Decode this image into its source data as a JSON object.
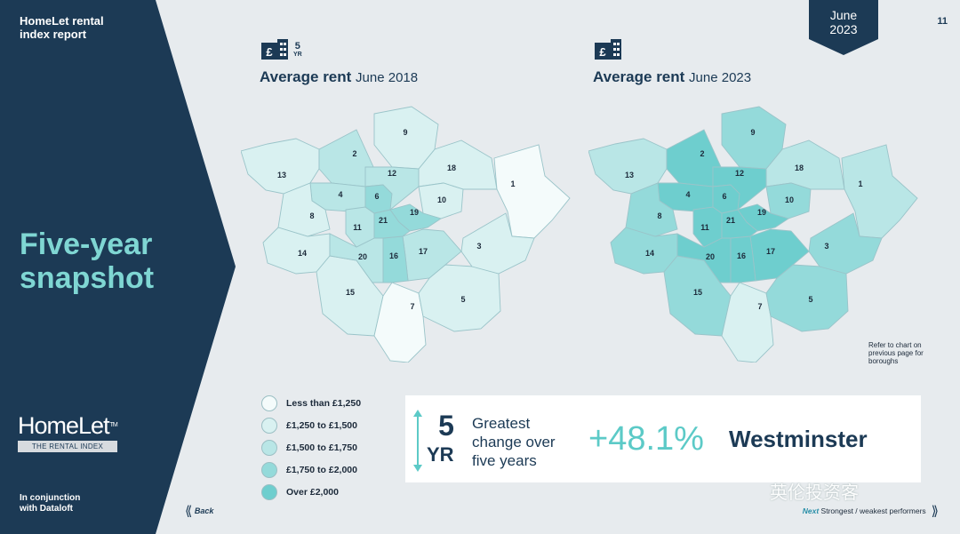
{
  "header": {
    "brand_title": "HomeLet rental index report",
    "date_tag_line1": "June",
    "date_tag_line2": "2023",
    "page_number": "11"
  },
  "sidebar": {
    "hero_title": "Five-year snapshot",
    "logo_word_1": "Home",
    "logo_word_2": "Let",
    "logo_tm": "TM",
    "logo_sub": "THE RENTAL INDEX",
    "partner_text": "In conjunction with Dataloft"
  },
  "colors": {
    "navy": "#1c3a55",
    "accent": "#7fd6d3",
    "band_1": "#f4fbfb",
    "band_2": "#d9f1f1",
    "band_3": "#b9e6e6",
    "band_4": "#94dada",
    "band_5": "#6ecece"
  },
  "maps": [
    {
      "badge_number": "5",
      "badge_unit": "YR",
      "title_bold": "Average rent",
      "title_period": "June 2018",
      "icon": "house-pound-icon",
      "boroughs": [
        {
          "label": "1",
          "band": 1
        },
        {
          "label": "2",
          "band": 3
        },
        {
          "label": "3",
          "band": 2
        },
        {
          "label": "4",
          "band": 3
        },
        {
          "label": "5",
          "band": 2
        },
        {
          "label": "6",
          "band": 4
        },
        {
          "label": "7",
          "band": 1
        },
        {
          "label": "8",
          "band": 2
        },
        {
          "label": "9",
          "band": 2
        },
        {
          "label": "10",
          "band": 2
        },
        {
          "label": "11",
          "band": 3
        },
        {
          "label": "12",
          "band": 3
        },
        {
          "label": "13",
          "band": 2
        },
        {
          "label": "14",
          "band": 2
        },
        {
          "label": "15",
          "band": 2
        },
        {
          "label": "16",
          "band": 4
        },
        {
          "label": "17",
          "band": 3
        },
        {
          "label": "18",
          "band": 2
        },
        {
          "label": "19",
          "band": 4
        },
        {
          "label": "20",
          "band": 3
        },
        {
          "label": "21",
          "band": 4
        }
      ]
    },
    {
      "badge_number": "",
      "badge_unit": "",
      "title_bold": "Average rent",
      "title_period": "June 2023",
      "icon": "house-pound-icon",
      "boroughs": [
        {
          "label": "1",
          "band": 3
        },
        {
          "label": "2",
          "band": 5
        },
        {
          "label": "3",
          "band": 4
        },
        {
          "label": "4",
          "band": 5
        },
        {
          "label": "5",
          "band": 4
        },
        {
          "label": "6",
          "band": 5
        },
        {
          "label": "7",
          "band": 2
        },
        {
          "label": "8",
          "band": 4
        },
        {
          "label": "9",
          "band": 4
        },
        {
          "label": "10",
          "band": 4
        },
        {
          "label": "11",
          "band": 5
        },
        {
          "label": "12",
          "band": 5
        },
        {
          "label": "13",
          "band": 3
        },
        {
          "label": "14",
          "band": 4
        },
        {
          "label": "15",
          "band": 4
        },
        {
          "label": "16",
          "band": 5
        },
        {
          "label": "17",
          "band": 5
        },
        {
          "label": "18",
          "band": 3
        },
        {
          "label": "19",
          "band": 5
        },
        {
          "label": "20",
          "band": 5
        },
        {
          "label": "21",
          "band": 5
        }
      ]
    }
  ],
  "map_note": "Refer to chart on previous page for boroughs",
  "legend": [
    {
      "label": "Less than £1,250",
      "color": "#f4fbfb"
    },
    {
      "label": "£1,250 to £1,500",
      "color": "#d9f1f1"
    },
    {
      "label": "£1,500 to £1,750",
      "color": "#b9e6e6"
    },
    {
      "label": "£1,750 to £2,000",
      "color": "#94dada"
    },
    {
      "label": "Over £2,000",
      "color": "#6ecece"
    }
  ],
  "summary": {
    "period_number": "5",
    "period_unit": "YR",
    "description": "Greatest change over five years",
    "change_value": "+48.1%",
    "area": "Westminster"
  },
  "nav": {
    "back_label": "Back",
    "next_label": "Next",
    "next_description": "Strongest / weakest performers"
  },
  "watermark": "英伦投资客"
}
